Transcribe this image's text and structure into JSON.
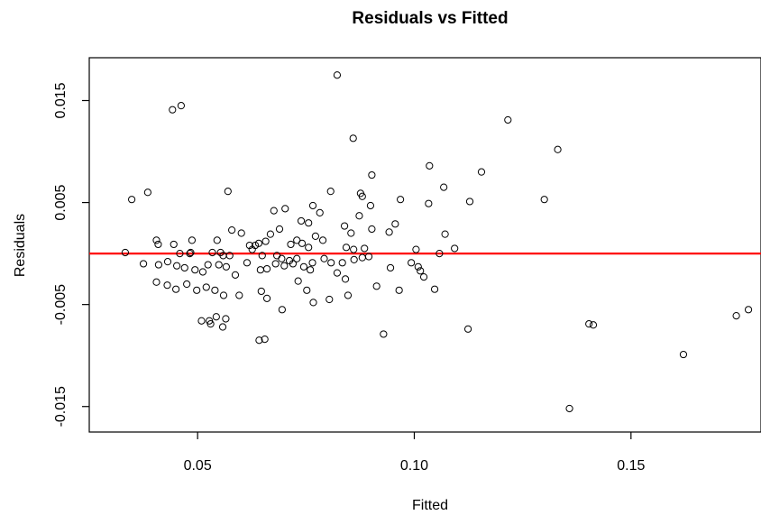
{
  "chart_data": {
    "type": "scatter",
    "title": "Residuals vs Fitted",
    "xlabel": "Fitted",
    "ylabel": "Residuals",
    "xlim": [
      0.025,
      0.18
    ],
    "ylim": [
      -0.0175,
      0.0192
    ],
    "xticks": [
      0.05,
      0.1,
      0.15
    ],
    "xtick_labels": [
      "0.05",
      "0.10",
      "0.15"
    ],
    "yticks": [
      -0.015,
      -0.005,
      0.005,
      0.015
    ],
    "ytick_labels": [
      "-0.015",
      "-0.005",
      "0.005",
      "0.015"
    ],
    "reference_line": {
      "y": 0,
      "color": "#ff0000"
    },
    "grid": false,
    "marker": "open-circle",
    "point_color": "#000000",
    "points": [
      [
        0.0822,
        0.0175
      ],
      [
        0.0462,
        0.0145
      ],
      [
        0.0442,
        0.0141
      ],
      [
        0.1216,
        0.0131
      ],
      [
        0.0859,
        0.0113
      ],
      [
        0.1331,
        0.0102
      ],
      [
        0.1035,
        0.0086
      ],
      [
        0.1155,
        0.008
      ],
      [
        0.0902,
        0.0077
      ],
      [
        0.1068,
        0.0065
      ],
      [
        0.0385,
        0.006
      ],
      [
        0.057,
        0.0061
      ],
      [
        0.0807,
        0.0061
      ],
      [
        0.0876,
        0.0059
      ],
      [
        0.088,
        0.0056
      ],
      [
        0.0348,
        0.0053
      ],
      [
        0.0968,
        0.0053
      ],
      [
        0.1128,
        0.0051
      ],
      [
        0.13,
        0.0053
      ],
      [
        0.1033,
        0.0049
      ],
      [
        0.0899,
        0.0047
      ],
      [
        0.0676,
        0.0042
      ],
      [
        0.0702,
        0.0044
      ],
      [
        0.0766,
        0.0047
      ],
      [
        0.0782,
        0.004
      ],
      [
        0.0873,
        0.0037
      ],
      [
        0.0956,
        0.0029
      ],
      [
        0.0839,
        0.0027
      ],
      [
        0.0942,
        0.0021
      ],
      [
        0.0756,
        0.003
      ],
      [
        0.0739,
        0.0032
      ],
      [
        0.0854,
        0.002
      ],
      [
        0.0902,
        0.0024
      ],
      [
        0.1071,
        0.0019
      ],
      [
        0.0772,
        0.0017
      ],
      [
        0.0789,
        0.0013
      ],
      [
        0.0729,
        0.0013
      ],
      [
        0.0715,
        0.0009
      ],
      [
        0.0741,
        0.001
      ],
      [
        0.0657,
        0.0012
      ],
      [
        0.0668,
        0.0019
      ],
      [
        0.0579,
        0.0023
      ],
      [
        0.0601,
        0.002
      ],
      [
        0.0689,
        0.0024
      ],
      [
        0.0545,
        0.0013
      ],
      [
        0.0633,
        0.0008
      ],
      [
        0.062,
        0.0008
      ],
      [
        0.0487,
        0.0013
      ],
      [
        0.0405,
        0.0013
      ],
      [
        0.0409,
        0.0009
      ],
      [
        0.0445,
        0.0009
      ],
      [
        0.0626,
        0.0004
      ],
      [
        0.0641,
        0.001
      ],
      [
        0.0756,
        0.0006
      ],
      [
        0.0843,
        0.0006
      ],
      [
        0.086,
        0.0004
      ],
      [
        0.0885,
        0.0005
      ],
      [
        0.1004,
        0.0004
      ],
      [
        0.1093,
        0.0005
      ],
      [
        0.0333,
        0.0001
      ],
      [
        0.0459,
        0.0
      ],
      [
        0.0482,
        0.0
      ],
      [
        0.0484,
        0.0001
      ],
      [
        0.0534,
        0.0001
      ],
      [
        0.0553,
        0.0001
      ],
      [
        0.0574,
        -0.0002
      ],
      [
        0.0559,
        -0.0002
      ],
      [
        0.0649,
        -0.0002
      ],
      [
        0.0683,
        -0.0002
      ],
      [
        0.0694,
        -0.0005
      ],
      [
        0.0712,
        -0.0007
      ],
      [
        0.0729,
        -0.0005
      ],
      [
        0.0792,
        -0.0005
      ],
      [
        0.0765,
        -0.0009
      ],
      [
        0.0808,
        -0.0009
      ],
      [
        0.0834,
        -0.0009
      ],
      [
        0.0861,
        -0.0006
      ],
      [
        0.088,
        -0.0004
      ],
      [
        0.0895,
        -0.0003
      ],
      [
        0.0993,
        -0.0009
      ],
      [
        0.1009,
        -0.0013
      ],
      [
        0.1014,
        -0.0017
      ],
      [
        0.1022,
        -0.0023
      ],
      [
        0.1058,
        0.0
      ],
      [
        0.0375,
        -0.001
      ],
      [
        0.041,
        -0.0011
      ],
      [
        0.0431,
        -0.0008
      ],
      [
        0.0452,
        -0.0012
      ],
      [
        0.047,
        -0.0014
      ],
      [
        0.0494,
        -0.0016
      ],
      [
        0.0512,
        -0.0018
      ],
      [
        0.0524,
        -0.0011
      ],
      [
        0.0549,
        -0.0011
      ],
      [
        0.0566,
        -0.0013
      ],
      [
        0.0587,
        -0.0021
      ],
      [
        0.0614,
        -0.0009
      ],
      [
        0.0645,
        -0.0016
      ],
      [
        0.066,
        -0.0015
      ],
      [
        0.068,
        -0.001
      ],
      [
        0.07,
        -0.0012
      ],
      [
        0.072,
        -0.001
      ],
      [
        0.0745,
        -0.0013
      ],
      [
        0.076,
        -0.0016
      ],
      [
        0.0822,
        -0.0019
      ],
      [
        0.0945,
        -0.0014
      ],
      [
        0.0405,
        -0.0028
      ],
      [
        0.043,
        -0.0031
      ],
      [
        0.045,
        -0.0035
      ],
      [
        0.0475,
        -0.003
      ],
      [
        0.0498,
        -0.0036
      ],
      [
        0.052,
        -0.0033
      ],
      [
        0.054,
        -0.0036
      ],
      [
        0.056,
        -0.0041
      ],
      [
        0.0596,
        -0.0041
      ],
      [
        0.0647,
        -0.0037
      ],
      [
        0.066,
        -0.0044
      ],
      [
        0.0732,
        -0.0027
      ],
      [
        0.0752,
        -0.0036
      ],
      [
        0.0841,
        -0.0025
      ],
      [
        0.0913,
        -0.0032
      ],
      [
        0.0965,
        -0.0036
      ],
      [
        0.1047,
        -0.0035
      ],
      [
        0.0767,
        -0.0048
      ],
      [
        0.0804,
        -0.0045
      ],
      [
        0.0847,
        -0.0041
      ],
      [
        0.0695,
        -0.0055
      ],
      [
        0.0509,
        -0.0066
      ],
      [
        0.0527,
        -0.0066
      ],
      [
        0.0543,
        -0.0062
      ],
      [
        0.0565,
        -0.0064
      ],
      [
        0.053,
        -0.0069
      ],
      [
        0.0558,
        -0.0072
      ],
      [
        0.0929,
        -0.0079
      ],
      [
        0.1124,
        -0.0074
      ],
      [
        0.1403,
        -0.0069
      ],
      [
        0.1413,
        -0.007
      ],
      [
        0.0642,
        -0.0085
      ],
      [
        0.0655,
        -0.0084
      ],
      [
        0.1621,
        -0.0099
      ],
      [
        0.1743,
        -0.0061
      ],
      [
        0.1771,
        -0.0055
      ],
      [
        0.1358,
        -0.0152
      ]
    ]
  }
}
